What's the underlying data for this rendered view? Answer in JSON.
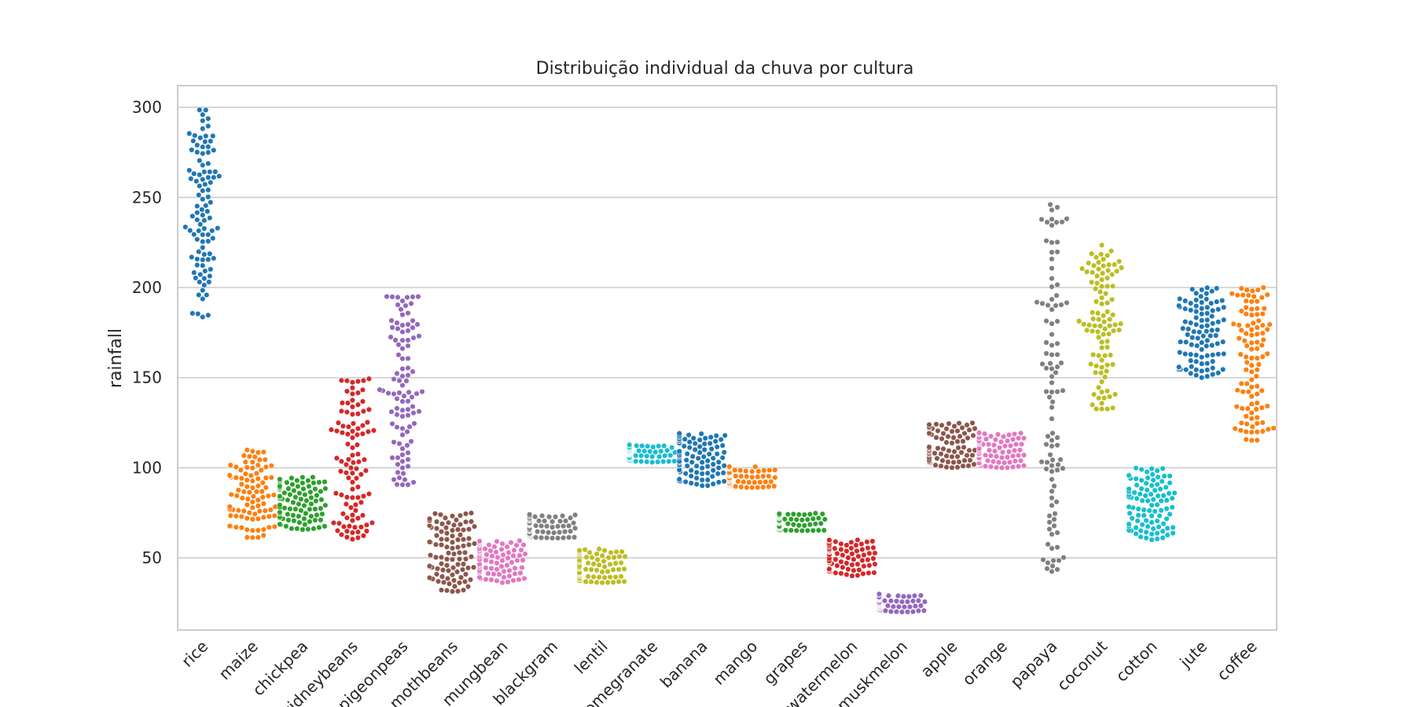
{
  "chart_data": {
    "type": "scatter",
    "subtype": "swarm",
    "title": "Distribuição individual da chuva por cultura",
    "xlabel": "",
    "ylabel": "rainfall",
    "ylim": [
      10,
      312
    ],
    "yticks": [
      50,
      100,
      150,
      200,
      250,
      300
    ],
    "grid": "horizontal",
    "legend": "none",
    "categories": [
      "rice",
      "maize",
      "chickpea",
      "kidneybeans",
      "pigeonpeas",
      "mothbeans",
      "mungbean",
      "blackgram",
      "lentil",
      "pomegranate",
      "banana",
      "mango",
      "grapes",
      "watermelon",
      "muskmelon",
      "apple",
      "orange",
      "papaya",
      "coconut",
      "cotton",
      "jute",
      "coffee"
    ],
    "colors": [
      "#1f77b4",
      "#ff7f0e",
      "#2ca02c",
      "#d62728",
      "#9467bd",
      "#8c564b",
      "#e377c2",
      "#7f7f7f",
      "#bcbd22",
      "#17becf",
      "#1f77b4",
      "#ff7f0e",
      "#2ca02c",
      "#d62728",
      "#9467bd",
      "#8c564b",
      "#e377c2",
      "#7f7f7f",
      "#bcbd22",
      "#17becf",
      "#1f77b4",
      "#ff7f0e"
    ],
    "series": [
      {
        "category": "rice",
        "n": 100,
        "min": 183,
        "max": 299
      },
      {
        "category": "maize",
        "n": 100,
        "min": 61,
        "max": 110
      },
      {
        "category": "chickpea",
        "n": 100,
        "min": 65,
        "max": 95
      },
      {
        "category": "kidneybeans",
        "n": 100,
        "min": 60,
        "max": 150
      },
      {
        "category": "pigeonpeas",
        "n": 100,
        "min": 90,
        "max": 199
      },
      {
        "category": "mothbeans",
        "n": 100,
        "min": 31,
        "max": 75
      },
      {
        "category": "mungbean",
        "n": 100,
        "min": 36,
        "max": 60
      },
      {
        "category": "blackgram",
        "n": 100,
        "min": 61,
        "max": 75
      },
      {
        "category": "lentil",
        "n": 100,
        "min": 36,
        "max": 55
      },
      {
        "category": "pomegranate",
        "n": 100,
        "min": 103,
        "max": 113
      },
      {
        "category": "banana",
        "n": 100,
        "min": 90,
        "max": 120
      },
      {
        "category": "mango",
        "n": 100,
        "min": 89,
        "max": 101
      },
      {
        "category": "grapes",
        "n": 100,
        "min": 65,
        "max": 75
      },
      {
        "category": "watermelon",
        "n": 100,
        "min": 40,
        "max": 60
      },
      {
        "category": "muskmelon",
        "n": 100,
        "min": 20,
        "max": 30
      },
      {
        "category": "apple",
        "n": 100,
        "min": 100,
        "max": 125
      },
      {
        "category": "orange",
        "n": 100,
        "min": 100,
        "max": 120
      },
      {
        "category": "papaya",
        "n": 100,
        "min": 40,
        "max": 249
      },
      {
        "category": "coconut",
        "n": 100,
        "min": 131,
        "max": 226
      },
      {
        "category": "cotton",
        "n": 100,
        "min": 60,
        "max": 100
      },
      {
        "category": "jute",
        "n": 100,
        "min": 150,
        "max": 200
      },
      {
        "category": "coffee",
        "n": 100,
        "min": 115,
        "max": 200
      }
    ]
  }
}
